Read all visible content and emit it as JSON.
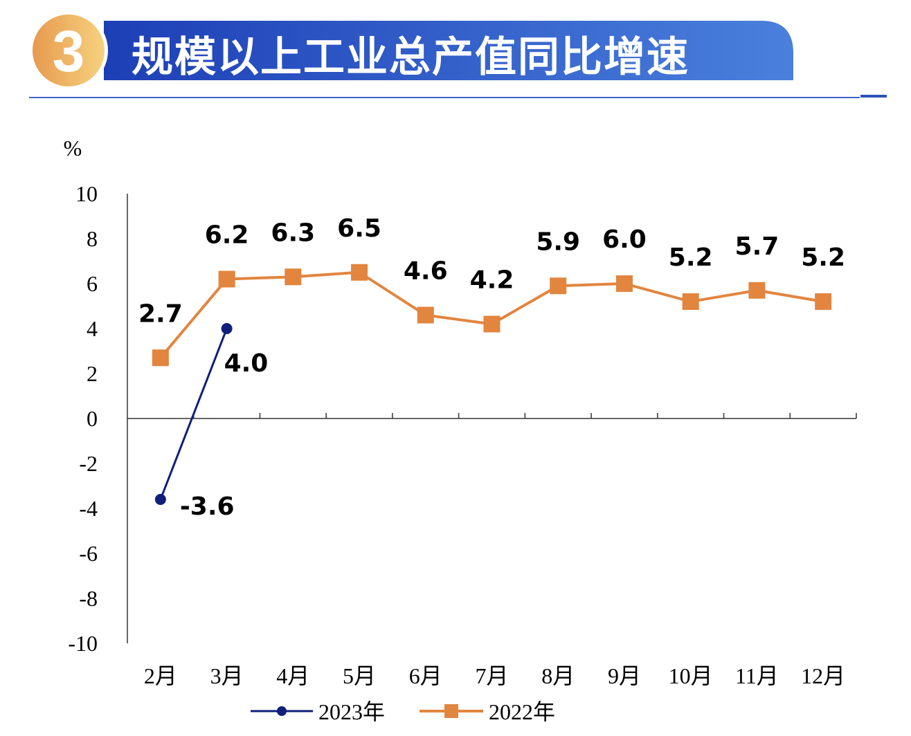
{
  "header": {
    "number": "3",
    "title": "规模以上工业总产值同比增速"
  },
  "colors": {
    "series2023": "#0f1f7a",
    "series2022": "#e2853f",
    "banner_start": "#1f44b8",
    "banner_end": "#4b7fdc"
  },
  "chart_data": {
    "type": "line",
    "title": "规模以上工业总产值同比增速",
    "ylabel": "%",
    "xlabel": "",
    "ylim": [
      -10,
      10
    ],
    "yticks": [
      10,
      8,
      6,
      4,
      2,
      0,
      -2,
      -4,
      -6,
      -8,
      -10
    ],
    "categories": [
      "2月",
      "3月",
      "4月",
      "5月",
      "6月",
      "7月",
      "8月",
      "9月",
      "10月",
      "11月",
      "12月"
    ],
    "series": [
      {
        "name": "2023年",
        "values": [
          -3.6,
          4.0,
          null,
          null,
          null,
          null,
          null,
          null,
          null,
          null,
          null
        ],
        "labels": [
          "-3.6",
          "4.0"
        ]
      },
      {
        "name": "2022年",
        "values": [
          2.7,
          6.2,
          6.3,
          6.5,
          4.6,
          4.2,
          5.9,
          6.0,
          5.2,
          5.7,
          5.2
        ],
        "labels": [
          "2.7",
          "6.2",
          "6.3",
          "6.5",
          "4.6",
          "4.2",
          "5.9",
          "6.0",
          "5.2",
          "5.7",
          "5.2"
        ]
      }
    ],
    "legend": "bottom",
    "grid": false
  }
}
